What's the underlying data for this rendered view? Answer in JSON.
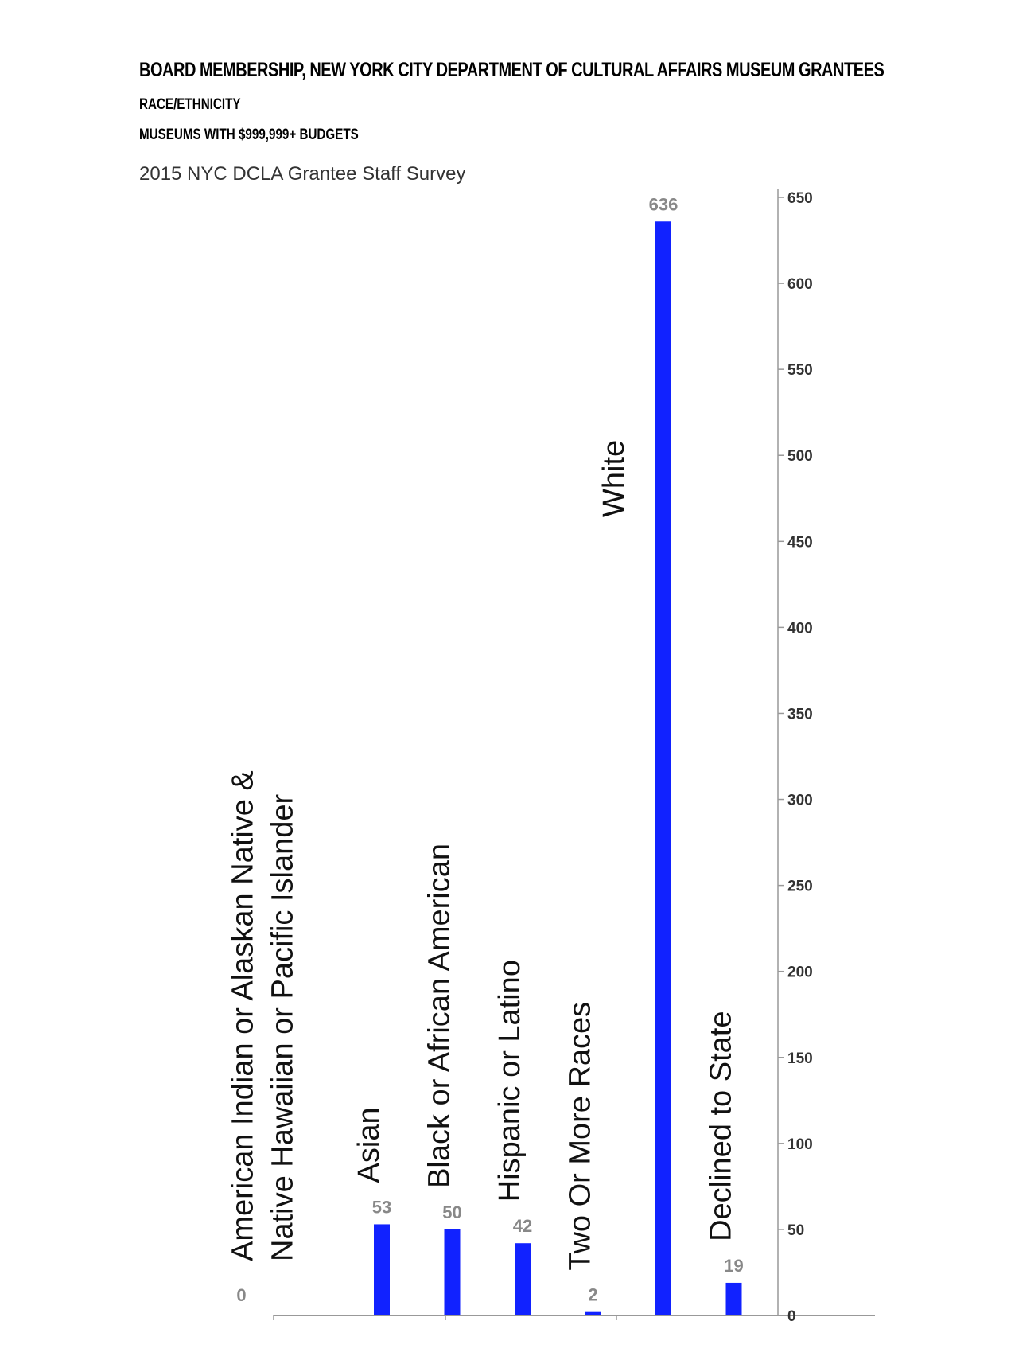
{
  "header": {
    "title": "BOARD MEMBERSHIP, NEW YORK CITY DEPARTMENT OF CULTURAL AFFAIRS MUSEUM GRANTEES",
    "subtitle1": "RACE/ETHNICITY",
    "subtitle2": "MUSEUMS WITH $999,999+ BUDGETS",
    "source": "2015 NYC DCLA Grantee Staff Survey"
  },
  "chart_data": {
    "type": "bar",
    "categories": [
      [
        "American Indian or Alaskan Native &",
        "Native Hawaiian or Pacific Islander"
      ],
      [
        "Asian"
      ],
      [
        "Black or African American"
      ],
      [
        "Hispanic or Latino"
      ],
      [
        "Two Or More Races"
      ],
      [
        "White"
      ],
      [
        "Declined to State"
      ]
    ],
    "values": [
      0,
      53,
      50,
      42,
      2,
      636,
      19
    ],
    "data_labels": [
      "0",
      "53",
      "50",
      "42",
      "2",
      "636",
      "19"
    ],
    "ylim": [
      0,
      650
    ],
    "y_ticks": [
      0,
      50,
      100,
      150,
      200,
      250,
      300,
      350,
      400,
      450,
      500,
      550,
      600,
      650
    ],
    "y_axis_side": "right",
    "bar_color": "#1122ff",
    "grid": false,
    "legend": "none"
  }
}
